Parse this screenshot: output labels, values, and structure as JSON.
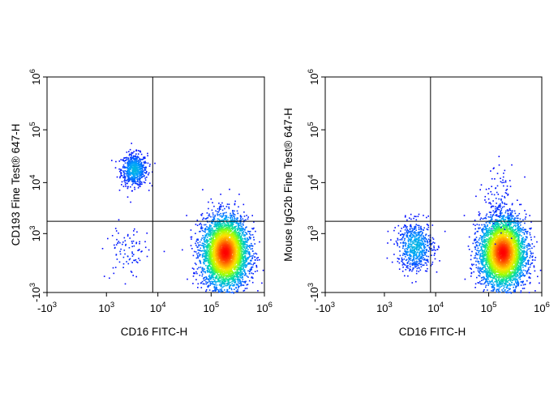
{
  "chart_data": [
    {
      "type": "scatter",
      "subtype": "flow-cytometry-density-dot-plot",
      "title": "",
      "xlabel": "CD16 FITC-H",
      "ylabel": "CD193 Fine Test® 647-H",
      "x_scale": "biexponential",
      "y_scale": "biexponential",
      "x_ticks": [
        "-10^3",
        "10^3",
        "10^4",
        "10^5",
        "10^6"
      ],
      "y_ticks": [
        "-10^3",
        "10^3",
        "10^4",
        "10^5",
        "10^6"
      ],
      "xlim": [
        -1000,
        1000000
      ],
      "ylim": [
        -1000,
        1000000
      ],
      "quadrant_gate": {
        "x": 8000,
        "y": 1800
      },
      "grid": false,
      "legend": "none",
      "color_scale": [
        "#0000ff",
        "#00a0ff",
        "#00e0a0",
        "#a0ff00",
        "#ffe000",
        "#ff8000",
        "#ff0000"
      ],
      "populations": [
        {
          "center": {
            "x": 3500,
            "y": 18000
          },
          "density": "medium",
          "approx_range_x": [
            1800,
            6000
          ],
          "approx_range_y": [
            8000,
            35000
          ]
        },
        {
          "center": {
            "x": 180000,
            "y": 300
          },
          "density": "high",
          "approx_range_x": [
            50000,
            400000
          ],
          "approx_range_y": [
            -800,
            2500
          ]
        },
        {
          "center": {
            "x": 2500,
            "y": 300
          },
          "density": "low",
          "approx_range_x": [
            800,
            6000
          ],
          "approx_range_y": [
            -600,
            1500
          ]
        }
      ]
    },
    {
      "type": "scatter",
      "subtype": "flow-cytometry-density-dot-plot",
      "title": "",
      "xlabel": "CD16 FITC-H",
      "ylabel": "Mouse IgG2b Fine Test® 647-H",
      "x_scale": "biexponential",
      "y_scale": "biexponential",
      "x_ticks": [
        "-10^3",
        "10^3",
        "10^4",
        "10^5",
        "10^6"
      ],
      "y_ticks": [
        "-10^3",
        "10^3",
        "10^4",
        "10^5",
        "10^6"
      ],
      "xlim": [
        -1000,
        1000000
      ],
      "ylim": [
        -1000,
        1000000
      ],
      "quadrant_gate": {
        "x": 8000,
        "y": 1800
      },
      "grid": false,
      "legend": "none",
      "color_scale": [
        "#0000ff",
        "#00a0ff",
        "#00e0a0",
        "#a0ff00",
        "#ffe000",
        "#ff8000",
        "#ff0000"
      ],
      "populations": [
        {
          "center": {
            "x": 4000,
            "y": 500
          },
          "density": "medium",
          "approx_range_x": [
            1500,
            8000
          ],
          "approx_range_y": [
            -400,
            1500
          ]
        },
        {
          "center": {
            "x": 180000,
            "y": 300
          },
          "density": "high",
          "approx_range_x": [
            50000,
            400000
          ],
          "approx_range_y": [
            -800,
            2500
          ]
        },
        {
          "center": {
            "x": 160000,
            "y": 5000
          },
          "density": "low",
          "approx_range_x": [
            80000,
            250000
          ],
          "approx_range_y": [
            1500,
            30000
          ]
        }
      ]
    }
  ]
}
